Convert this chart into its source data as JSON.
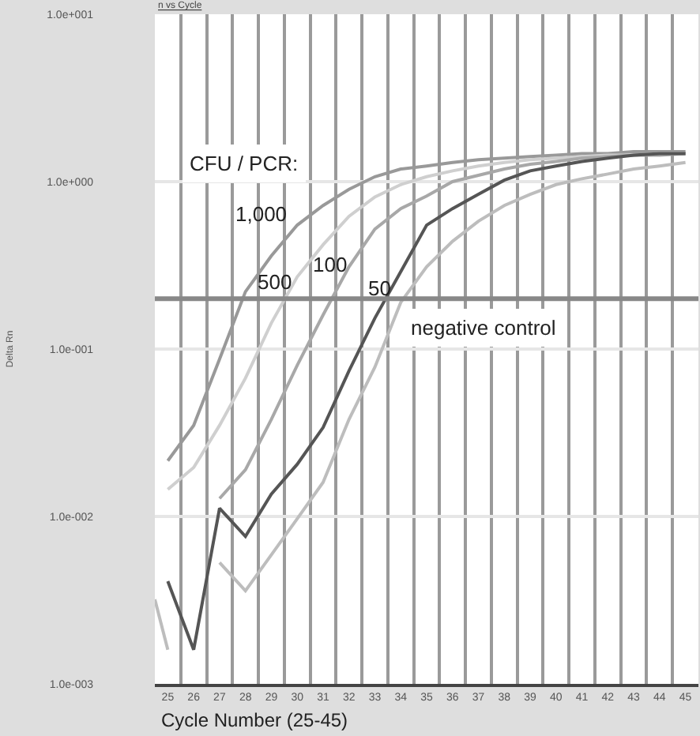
{
  "chart_data": {
    "type": "line",
    "title": "n vs Cycle",
    "xlabel": "Cycle Number (25-45)",
    "ylabel": "Delta Rn",
    "x": [
      25,
      26,
      27,
      28,
      29,
      30,
      31,
      32,
      33,
      34,
      35,
      36,
      37,
      38,
      39,
      40,
      41,
      42,
      43,
      44,
      45
    ],
    "series": [
      {
        "name": "1,000",
        "color": "#999999",
        "values": [
          0.0215,
          0.035,
          0.087,
          0.22,
          0.36,
          0.55,
          0.72,
          0.9,
          1.07,
          1.19,
          1.24,
          1.3,
          1.35,
          1.38,
          1.41,
          1.44,
          1.47,
          1.47,
          1.51,
          1.51,
          1.51
        ]
      },
      {
        "name": "500",
        "color": "#cfcfcf",
        "values": [
          0.0145,
          0.0196,
          0.035,
          0.067,
          0.143,
          0.27,
          0.42,
          0.62,
          0.81,
          0.96,
          1.07,
          1.16,
          1.24,
          1.3,
          1.35,
          1.38,
          1.41,
          1.44,
          1.44,
          1.47,
          1.47
        ]
      },
      {
        "name": "100",
        "color": "#a8a8a8",
        "values": [
          null,
          null,
          0.0128,
          0.019,
          0.038,
          0.08,
          0.16,
          0.31,
          0.52,
          0.69,
          0.82,
          1.0,
          1.09,
          1.19,
          1.27,
          1.32,
          1.38,
          1.41,
          1.44,
          1.44,
          1.47
        ]
      },
      {
        "name": "50",
        "color": "#555555",
        "values": [
          0.0041,
          0.0016,
          0.0112,
          0.0076,
          0.0136,
          0.0205,
          0.034,
          0.074,
          0.153,
          0.29,
          0.55,
          0.69,
          0.84,
          1.02,
          1.16,
          1.24,
          1.32,
          1.38,
          1.44,
          1.47,
          1.47
        ]
      },
      {
        "color": "#bdbdbd",
        "x": [
          24.5,
          25
        ],
        "values": [
          0.0032,
          0.0016
        ]
      },
      {
        "color": "#bdbdbd",
        "values": [
          null,
          null,
          0.0053,
          0.0036,
          0.0059,
          0.0097,
          0.016,
          0.038,
          0.078,
          0.19,
          0.31,
          0.44,
          0.58,
          0.72,
          0.84,
          0.96,
          1.04,
          1.11,
          1.19,
          1.24,
          1.3
        ]
      }
    ],
    "annotations": [
      "CFU / PCR:",
      "negative control"
    ],
    "ref_lines": [
      {
        "axis": "y",
        "value": 0.2,
        "color": "#888888"
      }
    ],
    "xlim": [
      24.5,
      45.5
    ],
    "xticks": [
      25,
      26,
      27,
      28,
      29,
      30,
      31,
      32,
      33,
      34,
      35,
      36,
      37,
      38,
      39,
      40,
      41,
      42,
      43,
      44,
      45
    ],
    "ylim": [
      0.001,
      10
    ],
    "log": "y",
    "yticks": [
      {
        "value": 10,
        "label": "1.0e+001"
      },
      {
        "value": 1,
        "label": "1.0e+000"
      },
      {
        "value": 0.1,
        "label": "1.0e-001"
      },
      {
        "value": 0.01,
        "label": "1.0e-002"
      },
      {
        "value": 0.001,
        "label": "1.0e-003"
      }
    ],
    "grid": true,
    "marker": "none",
    "line_style": "solid"
  }
}
